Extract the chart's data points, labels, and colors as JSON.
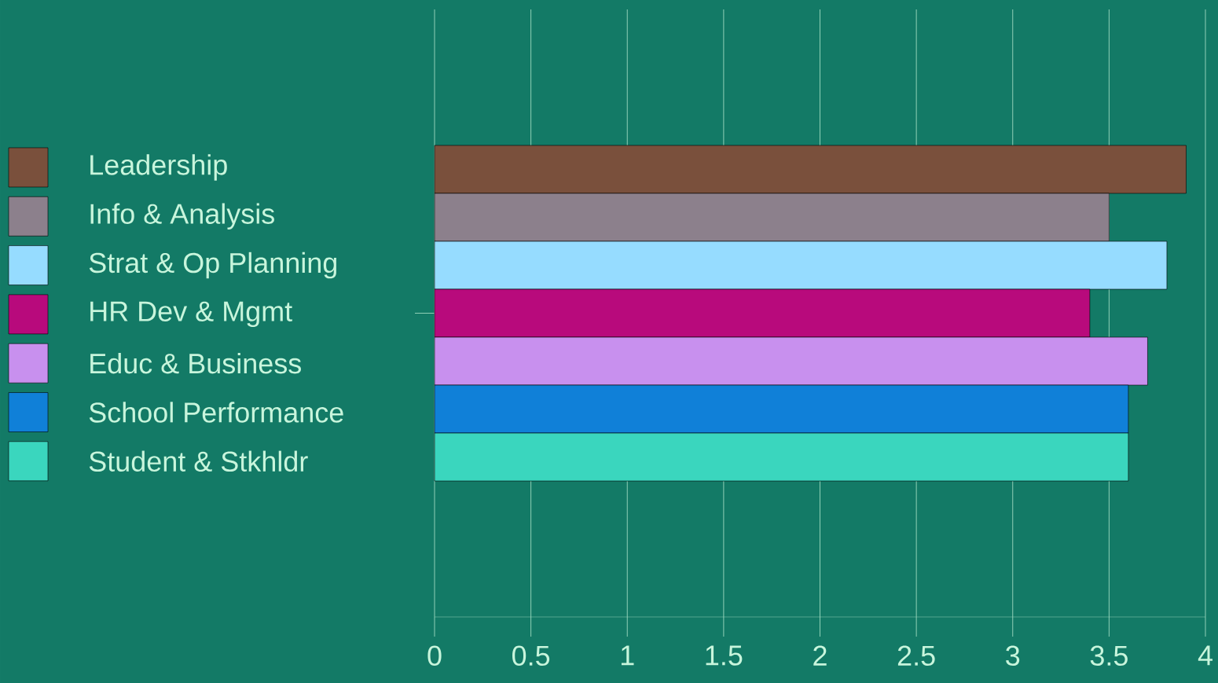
{
  "chart_data": {
    "type": "bar",
    "orientation": "horizontal",
    "categories": [
      null
    ],
    "series": [
      {
        "name": "Leadership",
        "color": "#7a503c",
        "values": [
          3.9
        ]
      },
      {
        "name": "Info & Analysis",
        "color": "#8c808c",
        "values": [
          3.5
        ]
      },
      {
        "name": "Strat & Op Planning",
        "color": "#96dcff",
        "values": [
          3.8
        ]
      },
      {
        "name": "HR Dev & Mgmt",
        "color": "#b80a7c",
        "values": [
          3.4
        ]
      },
      {
        "name": "Educ & Business",
        "color": "#c890ee",
        "values": [
          3.7
        ]
      },
      {
        "name": "School Performance",
        "color": "#1080d8",
        "values": [
          3.6
        ]
      },
      {
        "name": "Student & Stkhldr",
        "color": "#3ad6be",
        "values": [
          3.6
        ]
      }
    ],
    "xlim": [
      0,
      4
    ],
    "xticks": [
      0,
      0.5,
      1,
      1.5,
      2,
      2.5,
      3,
      3.5,
      4
    ],
    "grid": "x",
    "legend": "left"
  }
}
